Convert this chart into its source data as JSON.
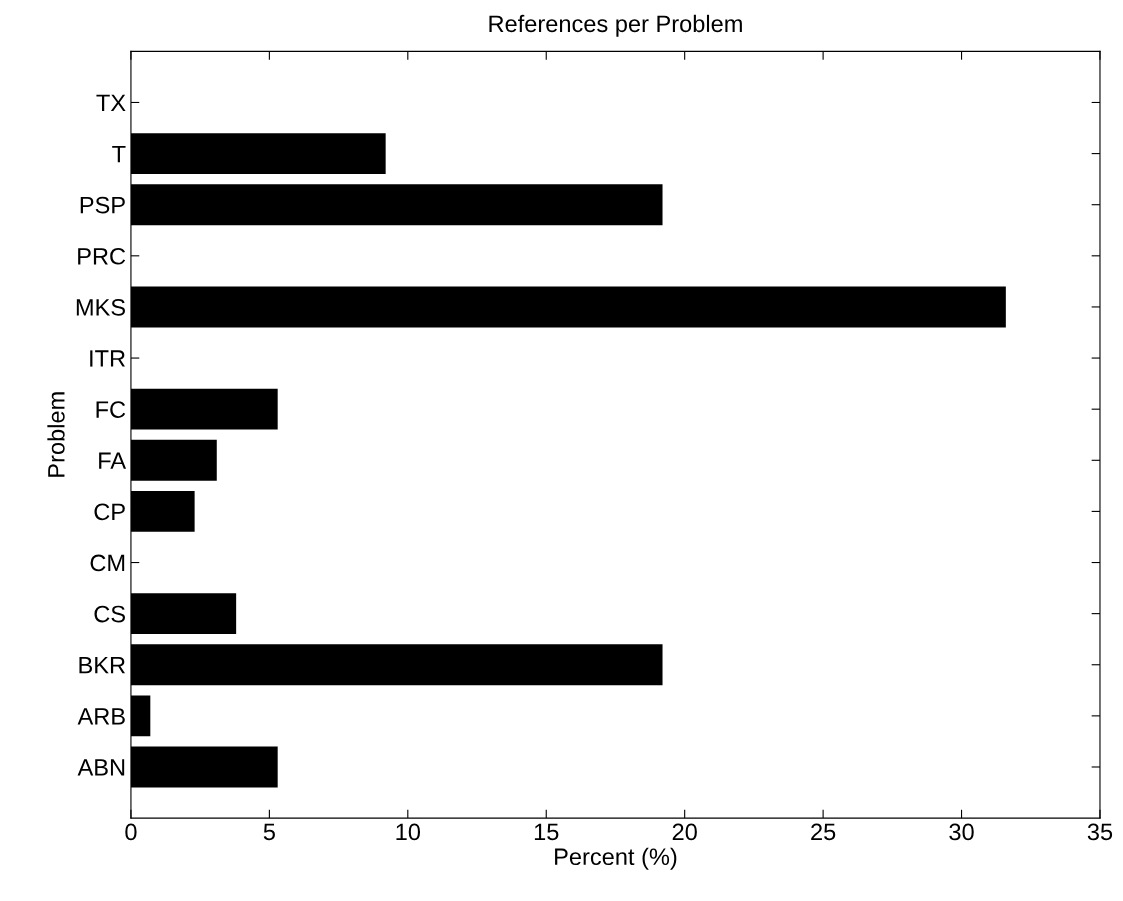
{
  "chart_data": {
    "type": "bar",
    "orientation": "horizontal",
    "title": "References per Problem",
    "xlabel": "Percent (%)",
    "ylabel": "Problem",
    "categories": [
      "TX",
      "T",
      "PSP",
      "PRC",
      "MKS",
      "ITR",
      "FC",
      "FA",
      "CP",
      "CM",
      "CS",
      "BKR",
      "ARB",
      "ABN"
    ],
    "values": [
      0,
      9.2,
      19.2,
      0,
      31.6,
      0,
      5.3,
      3.1,
      2.3,
      0,
      3.8,
      19.2,
      0.7,
      5.3
    ],
    "color": "#000000",
    "xlim": [
      0,
      35
    ],
    "xticks": [
      0,
      5,
      10,
      15,
      20,
      25,
      30,
      35
    ],
    "grid": false
  }
}
